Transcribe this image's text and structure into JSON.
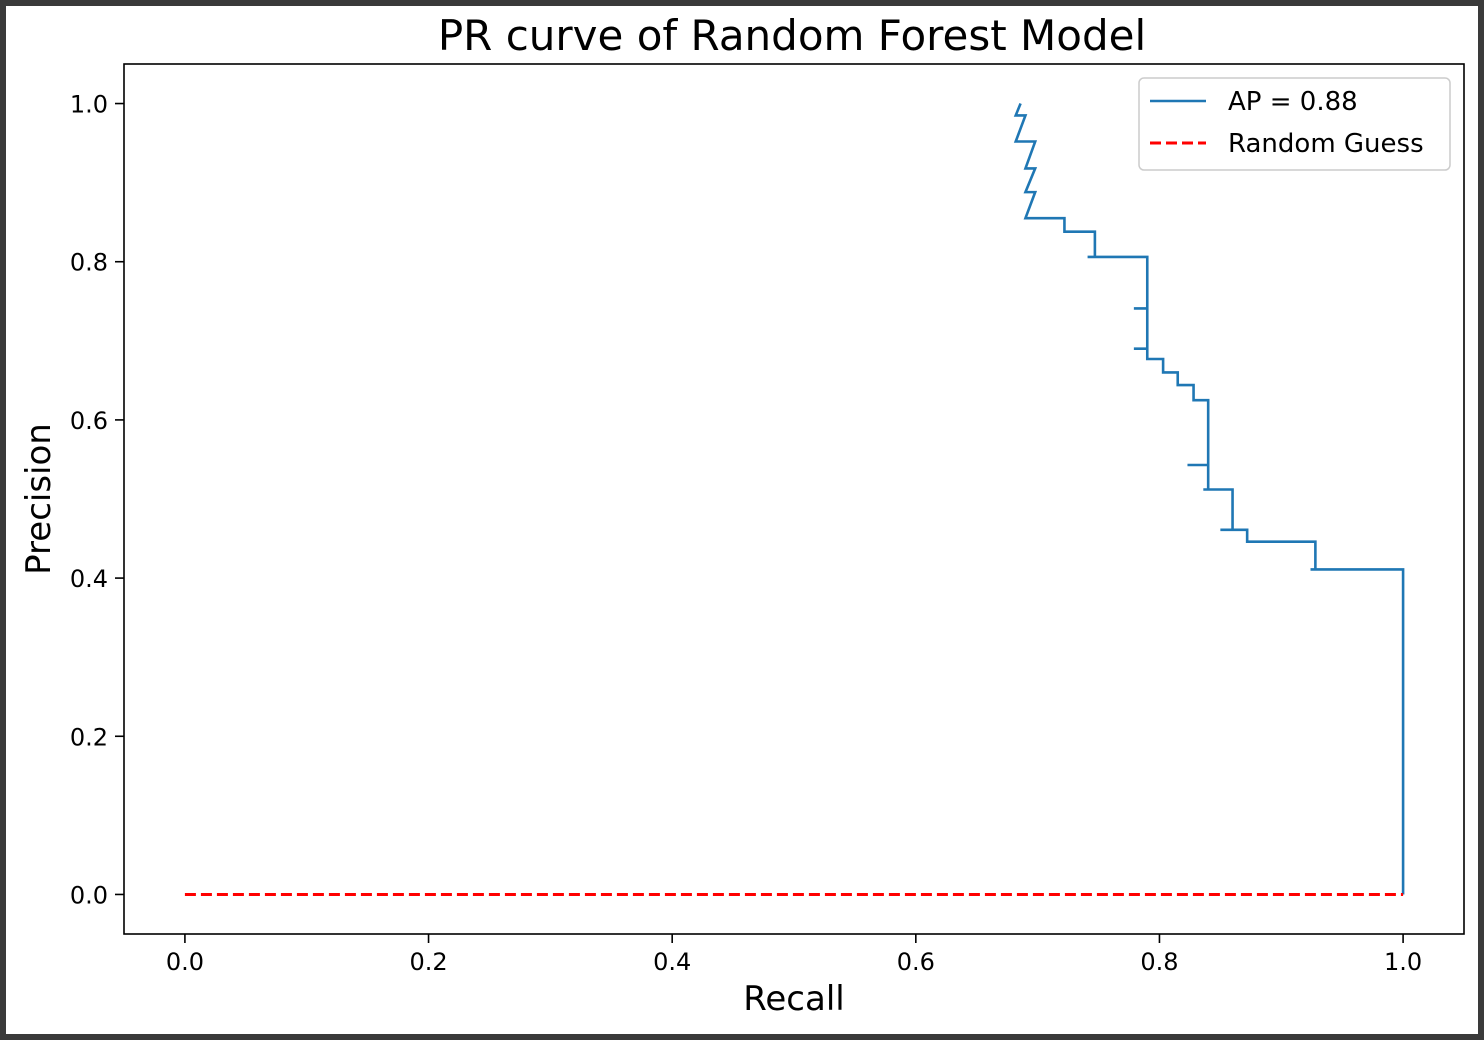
{
  "chart_data": {
    "type": "line",
    "title": "PR curve of Random Forest Model",
    "xlabel": "Recall",
    "ylabel": "Precision",
    "xlim": [
      -0.05,
      1.05
    ],
    "ylim": [
      -0.05,
      1.05
    ],
    "xticks": [
      "0.0",
      "0.2",
      "0.4",
      "0.6",
      "0.8",
      "1.0"
    ],
    "yticks": [
      "0.0",
      "0.2",
      "0.4",
      "0.6",
      "0.8",
      "1.0"
    ],
    "grid": false,
    "legend_position": "top-right",
    "series": [
      {
        "name": "AP = 0.88",
        "color": "#1f77b4",
        "style": "solid",
        "x": [
          0.686,
          0.682,
          0.69,
          0.682,
          0.698,
          0.69,
          0.698,
          0.69,
          0.698,
          0.69,
          0.698,
          0.722,
          0.722,
          0.747,
          0.747,
          0.741,
          0.741,
          0.79,
          0.79,
          0.779,
          0.779,
          0.79,
          0.79,
          0.779,
          0.779,
          0.79,
          0.79,
          0.803,
          0.803,
          0.815,
          0.815,
          0.828,
          0.828,
          0.84,
          0.84,
          0.823,
          0.823,
          0.84,
          0.84,
          0.836,
          0.836,
          0.86,
          0.86,
          0.85,
          0.85,
          0.872,
          0.872,
          0.928,
          0.928,
          0.924,
          0.924,
          1.0,
          1.0
        ],
        "y": [
          1.0,
          0.985,
          0.985,
          0.952,
          0.952,
          0.918,
          0.918,
          0.888,
          0.888,
          0.855,
          0.855,
          0.855,
          0.838,
          0.838,
          0.806,
          0.806,
          0.806,
          0.806,
          0.741,
          0.741,
          0.741,
          0.741,
          0.69,
          0.69,
          0.69,
          0.69,
          0.677,
          0.677,
          0.66,
          0.66,
          0.644,
          0.644,
          0.625,
          0.625,
          0.543,
          0.543,
          0.543,
          0.543,
          0.512,
          0.512,
          0.512,
          0.512,
          0.461,
          0.461,
          0.461,
          0.461,
          0.446,
          0.446,
          0.411,
          0.411,
          0.411,
          0.411,
          0.0
        ]
      },
      {
        "name": "Random Guess",
        "color": "#ff0000",
        "style": "dashed",
        "x": [
          0.0,
          1.0
        ],
        "y": [
          0.0,
          0.0
        ]
      }
    ]
  }
}
